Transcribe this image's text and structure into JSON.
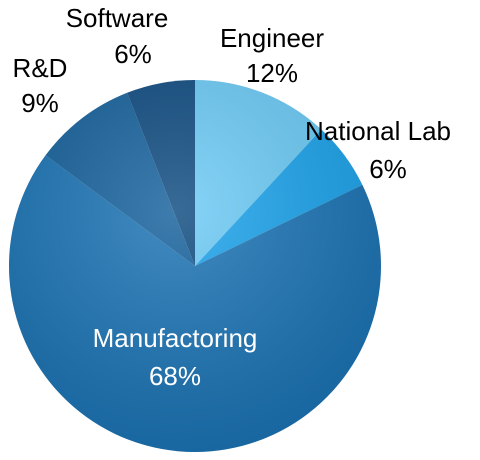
{
  "chart_data": {
    "type": "pie",
    "categories": [
      "Engineer",
      "National Lab",
      "Manufactoring",
      "R&D",
      "Software"
    ],
    "values": [
      12,
      6,
      68,
      9,
      6
    ],
    "value_labels": [
      "12%",
      "6%",
      "68%",
      "9%",
      "6%"
    ],
    "colors": [
      "#6ccbf7",
      "#1aa3ec",
      "#1a73b5",
      "#14609c",
      "#0d4a80"
    ]
  }
}
